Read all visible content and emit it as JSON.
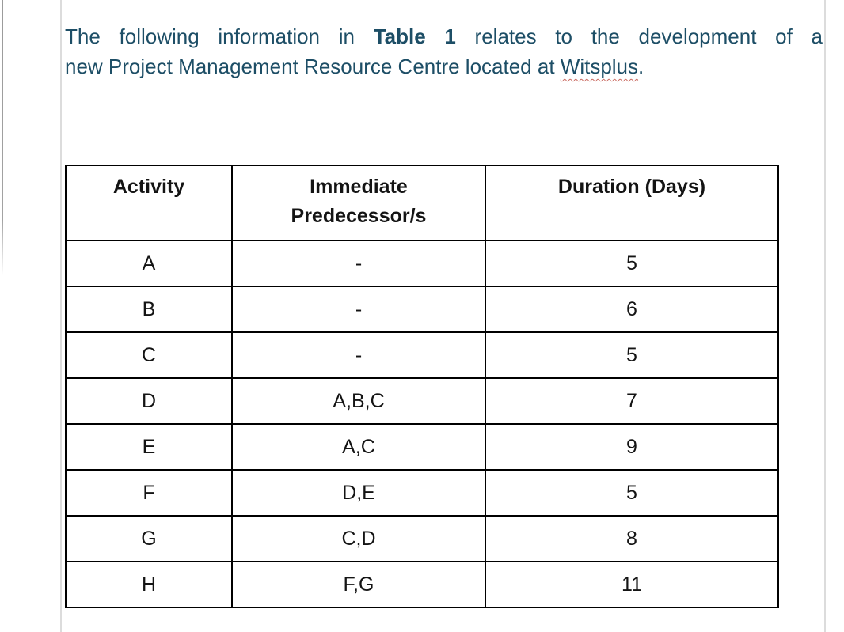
{
  "page": {
    "background_color": "#ffffff",
    "margin_guide_color": "#dcdcdc",
    "edge_line_color": "#9b9b9b"
  },
  "paragraph": {
    "text_color": "#1d4e66",
    "spellcheck_underline_color": "#c9685f",
    "line1_pre": "The following information in ",
    "line1_bold": "Table 1",
    "line1_post": " relates to the development of a",
    "line2_pre": "new Project Management Resource Centre located at ",
    "line2_misspelled": "Witsplus",
    "line2_suffix": "."
  },
  "table": {
    "border_color": "#000000",
    "headers": [
      {
        "line1": "Activity",
        "line2": ""
      },
      {
        "line1": "Immediate",
        "line2": "Predecessor/s"
      },
      {
        "line1": "Duration (Days)",
        "line2": ""
      }
    ],
    "rows": [
      {
        "activity": "A",
        "predecessors": "-",
        "duration": "5"
      },
      {
        "activity": "B",
        "predecessors": "-",
        "duration": "6"
      },
      {
        "activity": "C",
        "predecessors": "-",
        "duration": "5"
      },
      {
        "activity": "D",
        "predecessors": "A,B,C",
        "duration": "7"
      },
      {
        "activity": "E",
        "predecessors": "A,C",
        "duration": "9"
      },
      {
        "activity": "F",
        "predecessors": "D,E",
        "duration": "5"
      },
      {
        "activity": "G",
        "predecessors": "C,D",
        "duration": "8"
      },
      {
        "activity": "H",
        "predecessors": "F,G",
        "duration": "11"
      }
    ]
  }
}
